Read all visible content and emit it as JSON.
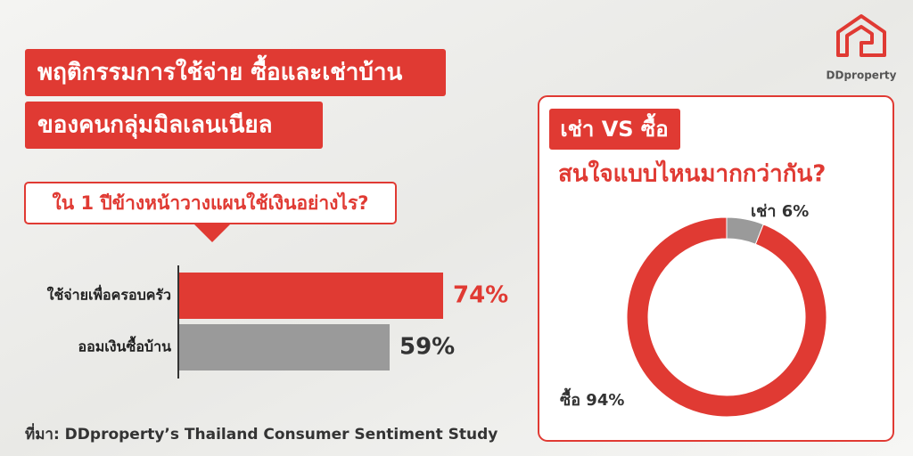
{
  "header": {
    "title_lines": [
      "พฤติกรรมการใช้จ่าย ซื้อและเช่าบ้าน",
      "ของคนกลุ่มมิลเลนเนียล"
    ]
  },
  "brand": "DDproperty",
  "source": "ที่มา: DDproperty’s Thailand Consumer Sentiment Study",
  "chart_data": [
    {
      "type": "hbar",
      "title": "ใน 1 ปีข้างหน้าวางแผนใช้เงินอย่างไร?",
      "categories": [
        "ใช้จ่ายเพื่อครอบครัว",
        "ออมเงินซื้อบ้าน"
      ],
      "values": [
        74,
        59
      ],
      "value_labels": [
        "74%",
        "59%"
      ],
      "colors": [
        "#e03a33",
        "#9a9a9a"
      ],
      "label_colors": [
        "#e03a33",
        "#333333"
      ],
      "xlim": [
        0,
        100
      ]
    },
    {
      "type": "donut",
      "title": "เช่า VS ซื้อ",
      "subtitle": "สนใจแบบไหนมากกว่ากัน?",
      "values": [
        6,
        94
      ],
      "value_labels": [
        "เช่า 6%",
        "ซื้อ 94%"
      ],
      "colors": [
        "#9a9a9a",
        "#e03a33"
      ]
    }
  ]
}
